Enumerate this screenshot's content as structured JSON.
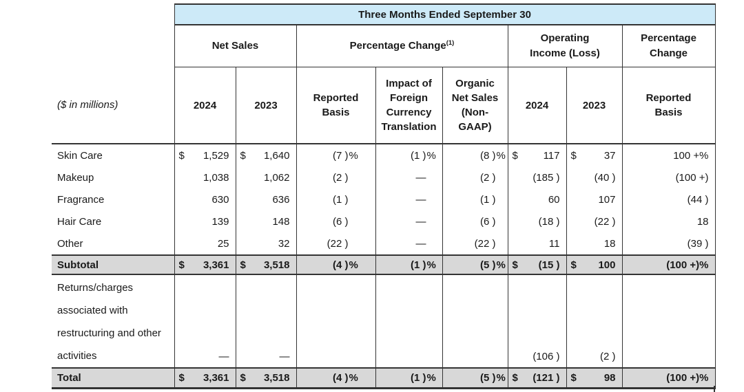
{
  "table": {
    "title": "Three Months Ended September 30",
    "unit_label": "($ in millions)",
    "colors": {
      "header_blue": "#cdeaf8",
      "total_gray": "#d8d8d8",
      "border": "#333333",
      "text": "#1a1a1a"
    },
    "group_headers": [
      {
        "lines": [
          "Net Sales"
        ],
        "sup": "",
        "span": 2
      },
      {
        "lines": [
          "Percentage Change"
        ],
        "sup": "(1)",
        "span": 3
      },
      {
        "lines": [
          "Operating",
          "Income (Loss)"
        ],
        "sup": "",
        "span": 2
      },
      {
        "lines": [
          "Percentage",
          "Change"
        ],
        "sup": "",
        "span": 1
      }
    ],
    "col_headers": [
      {
        "lines": [
          "2024"
        ]
      },
      {
        "lines": [
          "2023"
        ]
      },
      {
        "lines": [
          "Reported",
          "Basis"
        ]
      },
      {
        "lines": [
          "Impact of",
          "Foreign",
          "Currency",
          "Translation"
        ]
      },
      {
        "lines": [
          "Organic",
          "Net Sales",
          "(Non-",
          "GAAP)"
        ]
      },
      {
        "lines": [
          "2024"
        ]
      },
      {
        "lines": [
          "2023"
        ]
      },
      {
        "lines": [
          "Reported",
          "Basis"
        ]
      }
    ],
    "rows": [
      {
        "type": "data",
        "name": "row-skin-care",
        "label": "Skin Care",
        "cells": [
          {
            "d": "$",
            "v": "1,529"
          },
          {
            "d": "$",
            "v": "1,640"
          },
          {
            "v": "(7 )",
            "p": "%"
          },
          {
            "v": "(1 )",
            "p": "%"
          },
          {
            "v": "(8 )",
            "p": "%"
          },
          {
            "d": "$",
            "v": "117"
          },
          {
            "d": "$",
            "v": "37"
          },
          {
            "v": "100 +%"
          }
        ]
      },
      {
        "type": "data",
        "name": "row-makeup",
        "label": "Makeup",
        "cells": [
          {
            "v": "1,038"
          },
          {
            "v": "1,062"
          },
          {
            "v": "(2 )",
            "p": ""
          },
          {
            "v": "—",
            "p": ""
          },
          {
            "v": "(2 )",
            "p": ""
          },
          {
            "v": "(185 )"
          },
          {
            "v": "(40 )"
          },
          {
            "v": "(100 +)"
          }
        ]
      },
      {
        "type": "data",
        "name": "row-fragrance",
        "label": "Fragrance",
        "cells": [
          {
            "v": "630"
          },
          {
            "v": "636"
          },
          {
            "v": "(1 )",
            "p": ""
          },
          {
            "v": "—",
            "p": ""
          },
          {
            "v": "(1 )",
            "p": ""
          },
          {
            "v": "60"
          },
          {
            "v": "107"
          },
          {
            "v": "(44 )"
          }
        ]
      },
      {
        "type": "data",
        "name": "row-hair-care",
        "label": "Hair Care",
        "cells": [
          {
            "v": "139"
          },
          {
            "v": "148"
          },
          {
            "v": "(6 )",
            "p": ""
          },
          {
            "v": "—",
            "p": ""
          },
          {
            "v": "(6 )",
            "p": ""
          },
          {
            "v": "(18 )"
          },
          {
            "v": "(22 )"
          },
          {
            "v": "18"
          }
        ]
      },
      {
        "type": "data",
        "name": "row-other",
        "label": "Other",
        "cells": [
          {
            "v": "25"
          },
          {
            "v": "32"
          },
          {
            "v": "(22 )",
            "p": ""
          },
          {
            "v": "—",
            "p": ""
          },
          {
            "v": "(22 )",
            "p": ""
          },
          {
            "v": "11"
          },
          {
            "v": "18"
          },
          {
            "v": "(39 )"
          }
        ]
      },
      {
        "type": "subtotal",
        "name": "row-subtotal",
        "label": "Subtotal",
        "cells": [
          {
            "d": "$",
            "v": "3,361"
          },
          {
            "d": "$",
            "v": "3,518"
          },
          {
            "v": "(4 )",
            "p": "%"
          },
          {
            "v": "(1 )",
            "p": "%"
          },
          {
            "v": "(5 )",
            "p": "%"
          },
          {
            "d": "$",
            "v": "(15 )"
          },
          {
            "d": "$",
            "v": "100"
          },
          {
            "v": "(100 +)%"
          }
        ]
      },
      {
        "type": "returns",
        "name": "row-returns-charges",
        "label": "Returns/charges associated with restructuring and other activities",
        "cells": [
          {
            "v": "—"
          },
          {
            "v": "—"
          },
          {
            "v": ""
          },
          {
            "v": ""
          },
          {
            "v": ""
          },
          {
            "v": "(106 )"
          },
          {
            "v": "(2 )"
          },
          {
            "v": ""
          }
        ]
      },
      {
        "type": "total",
        "name": "row-total",
        "label": "Total",
        "cells": [
          {
            "d": "$",
            "v": "3,361"
          },
          {
            "d": "$",
            "v": "3,518"
          },
          {
            "v": "(4 )",
            "p": "%"
          },
          {
            "v": "(1 )",
            "p": "%"
          },
          {
            "v": "(5 )",
            "p": "%"
          },
          {
            "d": "$",
            "v": "(121 )"
          },
          {
            "d": "$",
            "v": "98"
          },
          {
            "v": "(100 +)%"
          }
        ]
      }
    ]
  }
}
